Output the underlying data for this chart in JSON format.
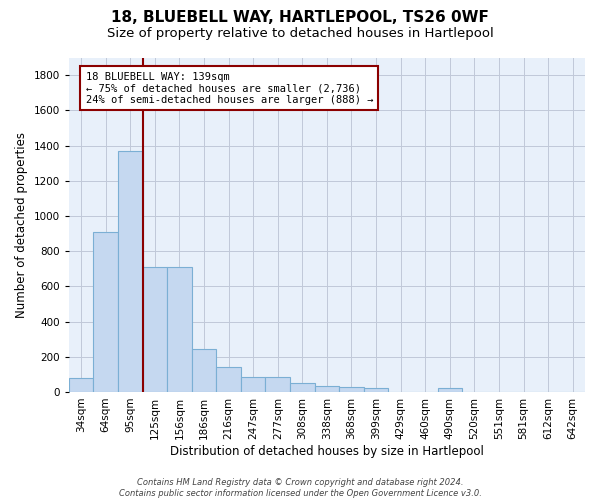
{
  "title": "18, BLUEBELL WAY, HARTLEPOOL, TS26 0WF",
  "subtitle": "Size of property relative to detached houses in Hartlepool",
  "xlabel": "Distribution of detached houses by size in Hartlepool",
  "ylabel": "Number of detached properties",
  "bar_labels": [
    "34sqm",
    "64sqm",
    "95sqm",
    "125sqm",
    "156sqm",
    "186sqm",
    "216sqm",
    "247sqm",
    "277sqm",
    "308sqm",
    "338sqm",
    "368sqm",
    "399sqm",
    "429sqm",
    "460sqm",
    "490sqm",
    "520sqm",
    "551sqm",
    "581sqm",
    "612sqm",
    "642sqm"
  ],
  "bar_values": [
    82,
    910,
    1370,
    710,
    710,
    245,
    140,
    85,
    85,
    50,
    35,
    30,
    20,
    0,
    0,
    20,
    0,
    0,
    0,
    0,
    0
  ],
  "bar_color": "#c5d8f0",
  "bar_edge_color": "#7bafd4",
  "vline_x": 2.5,
  "vline_color": "#8b0000",
  "annotation_text": "18 BLUEBELL WAY: 139sqm\n← 75% of detached houses are smaller (2,736)\n24% of semi-detached houses are larger (888) →",
  "annotation_box_color": "#ffffff",
  "annotation_box_edge": "#8b0000",
  "ylim": [
    0,
    1900
  ],
  "yticks": [
    0,
    200,
    400,
    600,
    800,
    1000,
    1200,
    1400,
    1600,
    1800
  ],
  "footnote": "Contains HM Land Registry data © Crown copyright and database right 2024.\nContains public sector information licensed under the Open Government Licence v3.0.",
  "background_color": "#ffffff",
  "plot_bg_color": "#e8f0fa",
  "grid_color": "#c0c8d8",
  "title_fontsize": 11,
  "subtitle_fontsize": 9.5,
  "axis_label_fontsize": 8.5,
  "tick_fontsize": 7.5,
  "annot_fontsize": 7.5,
  "footnote_fontsize": 6
}
